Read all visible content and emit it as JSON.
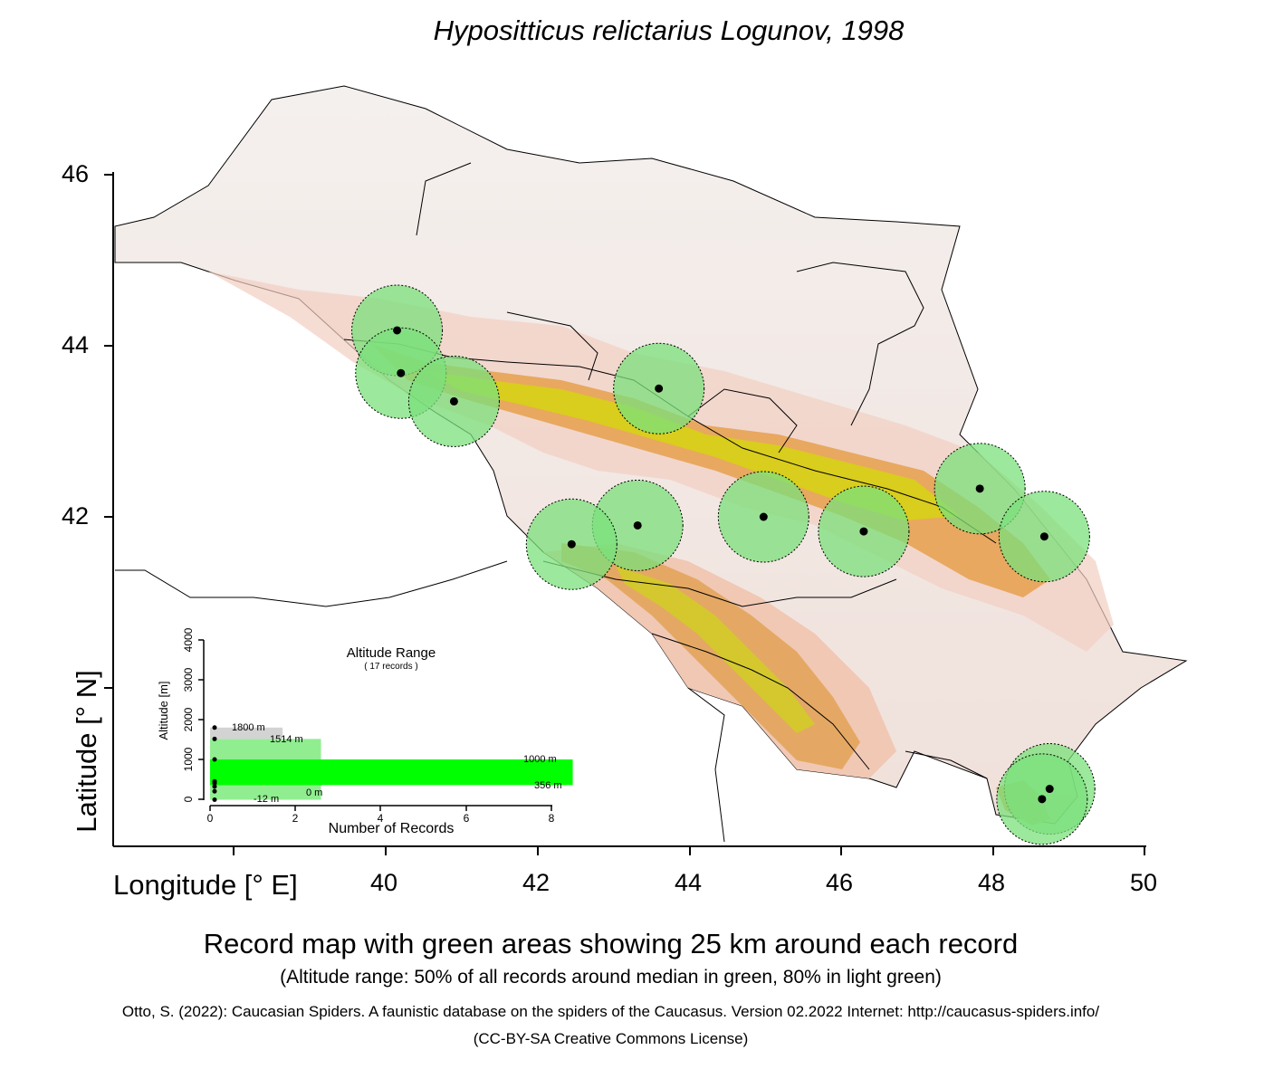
{
  "title": "Hypositticus relictarius Logunov, 1998",
  "axes": {
    "y_label": "Latitude [° N]",
    "x_label": "Longitude [° E]",
    "y_ticks": [
      "46",
      "44",
      "42"
    ],
    "x_ticks": [
      "40",
      "42",
      "44",
      "46",
      "48",
      "50"
    ]
  },
  "records": [
    {
      "lon": 40.15,
      "lat": 44.18
    },
    {
      "lon": 40.2,
      "lat": 43.68
    },
    {
      "lon": 40.9,
      "lat": 43.35
    },
    {
      "lon": 43.6,
      "lat": 43.5
    },
    {
      "lon": 43.32,
      "lat": 41.9
    },
    {
      "lon": 42.45,
      "lat": 41.68
    },
    {
      "lon": 44.98,
      "lat": 42.0
    },
    {
      "lon": 46.3,
      "lat": 41.83
    },
    {
      "lon": 47.83,
      "lat": 42.33
    },
    {
      "lon": 48.68,
      "lat": 41.77
    },
    {
      "lon": 48.75,
      "lat": 38.82
    },
    {
      "lon": 48.65,
      "lat": 38.7
    }
  ],
  "inset": {
    "title": "Altitude Range",
    "subtitle": "( 17 records )",
    "y_label": "Altitude [m]",
    "x_label": "Number of Records",
    "y_ticks": [
      "0",
      "1000",
      "2000",
      "3000",
      "4000"
    ],
    "x_ticks": [
      "0",
      "2",
      "4",
      "6",
      "8"
    ],
    "labels": {
      "max": "1800  m",
      "p80_high": "1514  m",
      "p50_high": "1000  m",
      "p50_low": "356  m",
      "p80_low": "0  m",
      "min": "-12  m"
    }
  },
  "chart_data": {
    "type": "bar",
    "title": "Altitude Range",
    "subtitle": "( 17 records )",
    "xlabel": "Number of Records",
    "ylabel": "Altitude [m]",
    "xlim": [
      0,
      8
    ],
    "ylim": [
      0,
      4000
    ],
    "orientation": "horizontal",
    "bins": [
      {
        "from": -12,
        "to": 356,
        "count": 2.6
      },
      {
        "from": 356,
        "to": 1000,
        "count": 8.5
      },
      {
        "from": 1000,
        "to": 1514,
        "count": 2.6
      },
      {
        "from": 1514,
        "to": 1800,
        "count": 1.7
      }
    ],
    "record_altitudes": [
      -12,
      200,
      320,
      400,
      450,
      1000,
      1514,
      1800
    ],
    "colors": {
      "p50": "#00ff00",
      "p80": "#90ee90",
      "range": "#d3d3d3"
    }
  },
  "caption": "Record map with green areas showing 25 km around each record",
  "subcaption": "(Altitude range: 50% of all records around median in green, 80% in light green)",
  "citation": "Otto, S. (2022): Caucasian Spiders. A faunistic database on the spiders of the Caucasus. Version 02.2022 Internet: http://caucasus-spiders.info/",
  "license": "(CC-BY-SA Creative Commons License)",
  "colors": {
    "record_area": "#7be07b",
    "mountains": "#e8a060",
    "highlands": "#d8d800",
    "lowland": "#f6d8d0",
    "sea": "#ffffff"
  }
}
